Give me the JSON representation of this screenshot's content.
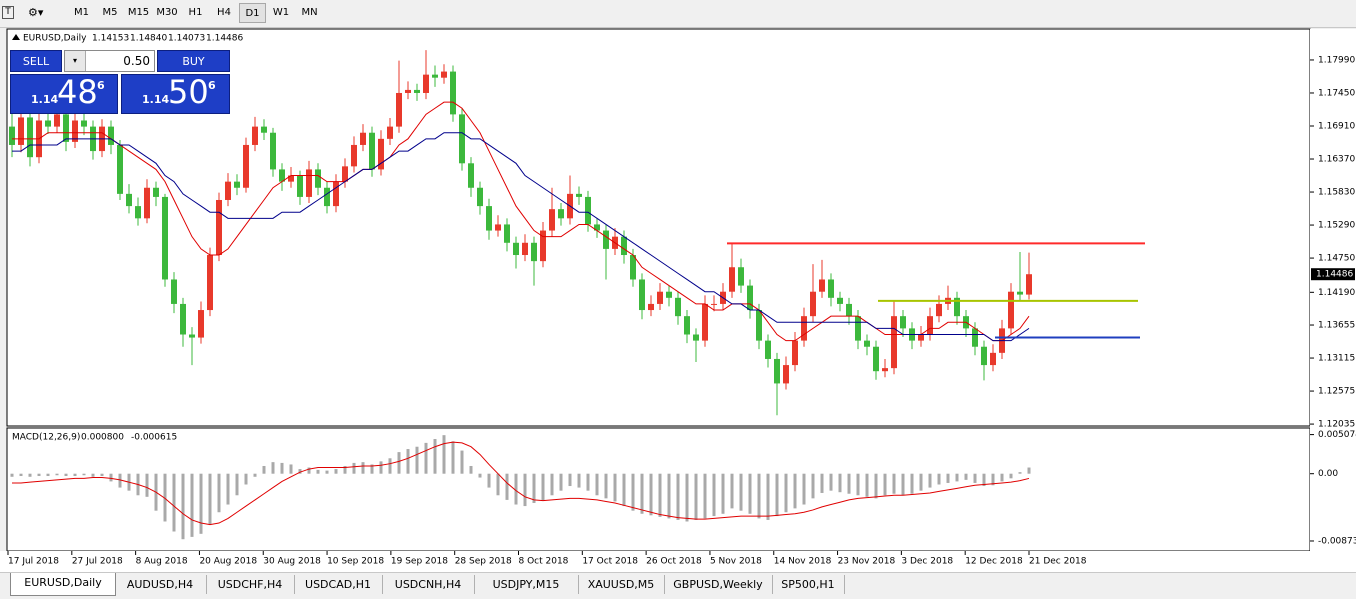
{
  "toolbar": {
    "timeframes": [
      "M1",
      "M5",
      "M15",
      "M30",
      "H1",
      "H4",
      "D1",
      "W1",
      "MN"
    ],
    "active": "D1"
  },
  "trade_panel": {
    "sell": "SELL",
    "buy": "BUY",
    "lot": "0.50",
    "bid": {
      "big": "1.14",
      "main": "48",
      "small": "6"
    },
    "ask": {
      "big": "1.14",
      "main": "50",
      "small": "6"
    }
  },
  "chart_data": {
    "type": "candlestick",
    "symbol": "EURUSD,Daily",
    "ohlc_labels": [
      "1.14153",
      "1.14840",
      "1.14073",
      "1.14486"
    ],
    "colors": {
      "up": "#e8392b",
      "down": "#3cb83c"
    },
    "candles": [
      [
        1.169,
        1.1712,
        1.164,
        1.166
      ],
      [
        1.166,
        1.1718,
        1.1648,
        1.1705
      ],
      [
        1.1705,
        1.1714,
        1.1625,
        1.164
      ],
      [
        1.164,
        1.1712,
        1.163,
        1.17
      ],
      [
        1.17,
        1.1718,
        1.1678,
        1.169
      ],
      [
        1.169,
        1.1722,
        1.168,
        1.171
      ],
      [
        1.171,
        1.172,
        1.165,
        1.1665
      ],
      [
        1.1665,
        1.1712,
        1.1655,
        1.17
      ],
      [
        1.17,
        1.1715,
        1.1676,
        1.169
      ],
      [
        1.169,
        1.17,
        1.1636,
        1.165
      ],
      [
        1.165,
        1.1702,
        1.164,
        1.169
      ],
      [
        1.169,
        1.17,
        1.1645,
        1.166
      ],
      [
        1.166,
        1.1668,
        1.157,
        1.158
      ],
      [
        1.158,
        1.1596,
        1.1548,
        1.156
      ],
      [
        1.156,
        1.1574,
        1.1528,
        1.154
      ],
      [
        1.154,
        1.1604,
        1.1532,
        1.159
      ],
      [
        1.159,
        1.16,
        1.156,
        1.1575
      ],
      [
        1.1575,
        1.158,
        1.1428,
        1.144
      ],
      [
        1.144,
        1.1452,
        1.1385,
        1.14
      ],
      [
        1.14,
        1.141,
        1.133,
        1.135
      ],
      [
        1.135,
        1.1362,
        1.13,
        1.1345
      ],
      [
        1.1345,
        1.1404,
        1.1335,
        1.139
      ],
      [
        1.139,
        1.1492,
        1.138,
        1.148
      ],
      [
        1.148,
        1.1582,
        1.147,
        1.157
      ],
      [
        1.157,
        1.1614,
        1.156,
        1.16
      ],
      [
        1.16,
        1.1612,
        1.1578,
        1.159
      ],
      [
        1.159,
        1.1672,
        1.1582,
        1.166
      ],
      [
        1.166,
        1.1706,
        1.165,
        1.169
      ],
      [
        1.169,
        1.1702,
        1.1668,
        1.168
      ],
      [
        1.168,
        1.1688,
        1.1608,
        1.162
      ],
      [
        1.162,
        1.163,
        1.1585,
        1.16
      ],
      [
        1.16,
        1.1624,
        1.159,
        1.161
      ],
      [
        1.161,
        1.1618,
        1.1562,
        1.1575
      ],
      [
        1.1575,
        1.1634,
        1.1565,
        1.162
      ],
      [
        1.162,
        1.163,
        1.1578,
        1.159
      ],
      [
        1.159,
        1.16,
        1.1548,
        1.156
      ],
      [
        1.156,
        1.1612,
        1.155,
        1.16
      ],
      [
        1.16,
        1.1638,
        1.159,
        1.1625
      ],
      [
        1.1625,
        1.1674,
        1.1615,
        1.166
      ],
      [
        1.166,
        1.1694,
        1.165,
        1.168
      ],
      [
        1.168,
        1.169,
        1.1608,
        1.162
      ],
      [
        1.162,
        1.1684,
        1.161,
        1.167
      ],
      [
        1.167,
        1.1704,
        1.166,
        1.169
      ],
      [
        1.169,
        1.1798,
        1.168,
        1.1745
      ],
      [
        1.1745,
        1.1764,
        1.1735,
        1.175
      ],
      [
        1.175,
        1.176,
        1.1732,
        1.1745
      ],
      [
        1.1745,
        1.1815,
        1.1735,
        1.1775
      ],
      [
        1.1775,
        1.179,
        1.1755,
        1.177
      ],
      [
        1.177,
        1.1792,
        1.176,
        1.178
      ],
      [
        1.178,
        1.179,
        1.1698,
        1.171
      ],
      [
        1.171,
        1.172,
        1.1618,
        1.163
      ],
      [
        1.163,
        1.164,
        1.1575,
        1.159
      ],
      [
        1.159,
        1.16,
        1.1546,
        1.156
      ],
      [
        1.156,
        1.1572,
        1.1505,
        1.152
      ],
      [
        1.152,
        1.1545,
        1.151,
        1.153
      ],
      [
        1.153,
        1.154,
        1.1486,
        1.15
      ],
      [
        1.15,
        1.151,
        1.1458,
        1.148
      ],
      [
        1.148,
        1.1514,
        1.147,
        1.15
      ],
      [
        1.15,
        1.151,
        1.143,
        1.147
      ],
      [
        1.147,
        1.1534,
        1.146,
        1.152
      ],
      [
        1.152,
        1.159,
        1.151,
        1.1555
      ],
      [
        1.1555,
        1.1565,
        1.1528,
        1.154
      ],
      [
        1.154,
        1.161,
        1.153,
        1.158
      ],
      [
        1.158,
        1.1592,
        1.1562,
        1.1575
      ],
      [
        1.1575,
        1.1585,
        1.1518,
        1.153
      ],
      [
        1.153,
        1.154,
        1.1508,
        1.152
      ],
      [
        1.152,
        1.153,
        1.144,
        1.149
      ],
      [
        1.149,
        1.1524,
        1.148,
        1.151
      ],
      [
        1.151,
        1.152,
        1.1466,
        1.148
      ],
      [
        1.148,
        1.149,
        1.1428,
        1.144
      ],
      [
        1.144,
        1.145,
        1.1375,
        1.139
      ],
      [
        1.139,
        1.1414,
        1.138,
        1.14
      ],
      [
        1.14,
        1.1434,
        1.139,
        1.142
      ],
      [
        1.142,
        1.143,
        1.1396,
        1.141
      ],
      [
        1.141,
        1.142,
        1.1366,
        1.138
      ],
      [
        1.138,
        1.139,
        1.1336,
        1.135
      ],
      [
        1.135,
        1.136,
        1.1305,
        1.134
      ],
      [
        1.134,
        1.1414,
        1.133,
        1.14
      ],
      [
        1.14,
        1.1414,
        1.1388,
        1.14
      ],
      [
        1.14,
        1.1434,
        1.139,
        1.142
      ],
      [
        1.142,
        1.15,
        1.141,
        1.146
      ],
      [
        1.146,
        1.1474,
        1.1418,
        1.143
      ],
      [
        1.143,
        1.144,
        1.1376,
        1.139
      ],
      [
        1.139,
        1.14,
        1.1326,
        1.134
      ],
      [
        1.134,
        1.135,
        1.1296,
        1.131
      ],
      [
        1.131,
        1.132,
        1.1218,
        1.127
      ],
      [
        1.127,
        1.1314,
        1.126,
        1.13
      ],
      [
        1.13,
        1.1354,
        1.129,
        1.134
      ],
      [
        1.134,
        1.1394,
        1.133,
        1.138
      ],
      [
        1.138,
        1.1465,
        1.137,
        1.142
      ],
      [
        1.142,
        1.1472,
        1.141,
        1.144
      ],
      [
        1.144,
        1.145,
        1.1396,
        1.141
      ],
      [
        1.141,
        1.142,
        1.1388,
        1.14
      ],
      [
        1.14,
        1.141,
        1.1366,
        1.138
      ],
      [
        1.138,
        1.139,
        1.1326,
        1.134
      ],
      [
        1.134,
        1.135,
        1.1316,
        1.133
      ],
      [
        1.133,
        1.134,
        1.1276,
        1.129
      ],
      [
        1.129,
        1.131,
        1.128,
        1.1295
      ],
      [
        1.1295,
        1.1405,
        1.1285,
        1.138
      ],
      [
        1.138,
        1.139,
        1.1346,
        1.136
      ],
      [
        1.136,
        1.137,
        1.1326,
        1.134
      ],
      [
        1.134,
        1.1364,
        1.133,
        1.135
      ],
      [
        1.135,
        1.1394,
        1.134,
        1.138
      ],
      [
        1.138,
        1.1414,
        1.137,
        1.14
      ],
      [
        1.14,
        1.143,
        1.139,
        1.141
      ],
      [
        1.141,
        1.142,
        1.1366,
        1.138
      ],
      [
        1.138,
        1.139,
        1.1346,
        1.136
      ],
      [
        1.136,
        1.137,
        1.1316,
        1.133
      ],
      [
        1.133,
        1.134,
        1.1275,
        1.13
      ],
      [
        1.13,
        1.1334,
        1.129,
        1.132
      ],
      [
        1.132,
        1.1374,
        1.131,
        1.136
      ],
      [
        1.136,
        1.1434,
        1.135,
        1.142
      ],
      [
        1.142,
        1.1485,
        1.1405,
        1.14153
      ],
      [
        1.14153,
        1.1484,
        1.14073,
        1.14486
      ]
    ],
    "series": [
      {
        "color": "#e00000",
        "values": [
          1.167,
          1.167,
          1.167,
          1.167,
          1.168,
          1.168,
          1.168,
          1.168,
          1.168,
          1.168,
          1.168,
          1.167,
          1.166,
          1.165,
          1.164,
          1.163,
          1.162,
          1.16,
          1.157,
          1.154,
          1.151,
          1.149,
          1.148,
          1.148,
          1.149,
          1.151,
          1.153,
          1.155,
          1.157,
          1.159,
          1.16,
          1.161,
          1.161,
          1.161,
          1.161,
          1.16,
          1.16,
          1.16,
          1.161,
          1.162,
          1.162,
          1.163,
          1.164,
          1.166,
          1.167,
          1.169,
          1.171,
          1.172,
          1.173,
          1.173,
          1.172,
          1.17,
          1.168,
          1.165,
          1.162,
          1.159,
          1.156,
          1.154,
          1.152,
          1.151,
          1.151,
          1.151,
          1.152,
          1.153,
          1.153,
          1.152,
          1.151,
          1.15,
          1.149,
          1.148,
          1.146,
          1.145,
          1.144,
          1.143,
          1.142,
          1.141,
          1.14,
          1.14,
          1.139,
          1.139,
          1.14,
          1.14,
          1.14,
          1.139,
          1.137,
          1.135,
          1.134,
          1.134,
          1.135,
          1.136,
          1.137,
          1.138,
          1.138,
          1.138,
          1.138,
          1.137,
          1.136,
          1.135,
          1.135,
          1.135,
          1.135,
          1.135,
          1.136,
          1.136,
          1.137,
          1.137,
          1.137,
          1.136,
          1.135,
          1.134,
          1.134,
          1.135,
          1.136,
          1.138
        ]
      },
      {
        "color": "#00008b",
        "values": [
          1.165,
          1.165,
          1.166,
          1.166,
          1.166,
          1.166,
          1.167,
          1.167,
          1.167,
          1.167,
          1.167,
          1.167,
          1.166,
          1.166,
          1.165,
          1.164,
          1.163,
          1.161,
          1.16,
          1.158,
          1.157,
          1.156,
          1.155,
          1.155,
          1.154,
          1.154,
          1.154,
          1.154,
          1.154,
          1.154,
          1.155,
          1.155,
          1.155,
          1.156,
          1.157,
          1.158,
          1.159,
          1.16,
          1.161,
          1.162,
          1.162,
          1.163,
          1.164,
          1.165,
          1.165,
          1.166,
          1.167,
          1.167,
          1.168,
          1.168,
          1.168,
          1.167,
          1.167,
          1.166,
          1.165,
          1.164,
          1.163,
          1.161,
          1.16,
          1.159,
          1.158,
          1.157,
          1.156,
          1.155,
          1.155,
          1.154,
          1.153,
          1.152,
          1.151,
          1.15,
          1.149,
          1.148,
          1.147,
          1.146,
          1.145,
          1.144,
          1.143,
          1.142,
          1.142,
          1.141,
          1.14,
          1.14,
          1.139,
          1.139,
          1.138,
          1.137,
          1.137,
          1.137,
          1.137,
          1.137,
          1.137,
          1.137,
          1.137,
          1.137,
          1.137,
          1.137,
          1.136,
          1.136,
          1.136,
          1.135,
          1.135,
          1.135,
          1.135,
          1.135,
          1.135,
          1.135,
          1.135,
          1.135,
          1.135,
          1.134,
          1.134,
          1.134,
          1.135,
          1.136
        ]
      }
    ],
    "levels": [
      {
        "price": 1.1499,
        "color": "#ff2a2a"
      },
      {
        "price": 1.1405,
        "color": "#a8c400"
      },
      {
        "price": 1.1345,
        "color": "#1f3fbf"
      }
    ],
    "ylim": [
      1.1202,
      1.1848
    ],
    "yticks": [
      {
        "value": 1.1799,
        "label": "1.17990"
      },
      {
        "value": 1.1745,
        "label": "1.17450"
      },
      {
        "value": 1.1691,
        "label": "1.16910"
      },
      {
        "value": 1.1637,
        "label": "1.16370"
      },
      {
        "value": 1.1583,
        "label": "1.15830"
      },
      {
        "value": 1.1529,
        "label": "1.15290"
      },
      {
        "value": 1.1475,
        "label": "1.14750"
      },
      {
        "value": 1.1419,
        "label": "1.14190"
      },
      1.13655,
      1.13115,
      1.12575,
      1.12035
    ],
    "x_labels": [
      "17 Jul 2018",
      "27 Jul 2018",
      "8 Aug 2018",
      "20 Aug 2018",
      "30 Aug 2018",
      "10 Sep 2018",
      "19 Sep 2018",
      "28 Sep 2018",
      "8 Oct 2018",
      "17 Oct 2018",
      "26 Oct 2018",
      "5 Nov 2018",
      "14 Nov 2018",
      "23 Nov 2018",
      "3 Dec 2018",
      "12 Dec 2018",
      "21 Dec 2018"
    ],
    "macd": {
      "title": "MACD(12,26,9)",
      "readout": [
        {
          "value": 0.0008,
          "label": "0.000800"
        },
        {
          "value": -0.000615,
          "label": "-0.000615"
        }
      ],
      "ylim": [
        -0.0099,
        0.0058
      ],
      "yticks": [
        0.005074,
        {
          "value": 0,
          "label": "0.00"
        },
        -0.00873
      ],
      "histogram": {
        "color": "#a9a9a9",
        "values": [
          -0.0004,
          -0.0003,
          -0.0004,
          -0.0003,
          -0.0003,
          -0.0002,
          -0.0003,
          -0.0003,
          -0.0002,
          -0.0004,
          -0.0003,
          -0.001,
          -0.0018,
          -0.0022,
          -0.0028,
          -0.003,
          -0.0048,
          -0.0062,
          -0.0075,
          -0.0085,
          -0.0082,
          -0.0078,
          -0.0066,
          -0.005,
          -0.004,
          -0.0028,
          -0.0014,
          -0.0004,
          0.001,
          0.0015,
          0.0014,
          0.0012,
          0.0006,
          0.0008,
          0.0005,
          0.0004,
          0.0006,
          0.001,
          0.0014,
          0.0015,
          0.0012,
          0.0016,
          0.002,
          0.0028,
          0.0032,
          0.0035,
          0.004,
          0.0045,
          0.005,
          0.0042,
          0.003,
          0.001,
          -0.0005,
          -0.0018,
          -0.0028,
          -0.0034,
          -0.004,
          -0.0042,
          -0.0038,
          -0.0035,
          -0.0028,
          -0.0022,
          -0.0016,
          -0.0018,
          -0.0022,
          -0.0028,
          -0.0032,
          -0.0036,
          -0.0042,
          -0.0048,
          -0.0052,
          -0.0054,
          -0.0056,
          -0.0058,
          -0.006,
          -0.0062,
          -0.006,
          -0.0058,
          -0.0055,
          -0.0052,
          -0.0045,
          -0.0048,
          -0.0052,
          -0.0058,
          -0.006,
          -0.0055,
          -0.005,
          -0.0045,
          -0.004,
          -0.0032,
          -0.0025,
          -0.0022,
          -0.0024,
          -0.0026,
          -0.0028,
          -0.003,
          -0.0032,
          -0.0028,
          -0.0026,
          -0.0028,
          -0.0026,
          -0.0022,
          -0.0018,
          -0.0014,
          -0.0012,
          -0.001,
          -0.0008,
          -0.0012,
          -0.0016,
          -0.0015,
          -0.001,
          -0.0006,
          0.0002,
          0.0008
        ]
      },
      "signal": {
        "color": "#e00000",
        "values": [
          -0.0012,
          -0.0012,
          -0.0011,
          -0.001,
          -0.0009,
          -0.0008,
          -0.0007,
          -0.0006,
          -0.0006,
          -0.0005,
          -0.0005,
          -0.0006,
          -0.0008,
          -0.0011,
          -0.0014,
          -0.0018,
          -0.0024,
          -0.0032,
          -0.0042,
          -0.0052,
          -0.006,
          -0.0064,
          -0.0066,
          -0.0064,
          -0.0058,
          -0.005,
          -0.0042,
          -0.0034,
          -0.0026,
          -0.0018,
          -0.001,
          -0.0004,
          0.0002,
          0.0006,
          0.0008,
          0.0008,
          0.0008,
          0.0008,
          0.0009,
          0.001,
          0.001,
          0.0011,
          0.0013,
          0.0016,
          0.002,
          0.0025,
          0.003,
          0.0035,
          0.0039,
          0.0041,
          0.004,
          0.0035,
          0.0025,
          0.0012,
          0.0,
          -0.0012,
          -0.0022,
          -0.003,
          -0.0034,
          -0.0035,
          -0.0034,
          -0.0033,
          -0.0032,
          -0.0032,
          -0.0033,
          -0.0034,
          -0.0036,
          -0.0038,
          -0.0041,
          -0.0044,
          -0.0047,
          -0.005,
          -0.0053,
          -0.0055,
          -0.0057,
          -0.0058,
          -0.0059,
          -0.0059,
          -0.0058,
          -0.0057,
          -0.0056,
          -0.0055,
          -0.0055,
          -0.0055,
          -0.0055,
          -0.0054,
          -0.0053,
          -0.0052,
          -0.005,
          -0.0047,
          -0.0043,
          -0.004,
          -0.0037,
          -0.0034,
          -0.0032,
          -0.0031,
          -0.003,
          -0.0029,
          -0.0028,
          -0.0028,
          -0.0027,
          -0.0026,
          -0.0025,
          -0.0023,
          -0.0021,
          -0.0019,
          -0.0017,
          -0.0015,
          -0.0014,
          -0.0013,
          -0.0012,
          -0.0011,
          -0.0009,
          -0.000615
        ]
      }
    }
  },
  "tabs": [
    "EURUSD,Daily",
    "AUDUSD,H4",
    "USDCHF,H4",
    "USDCAD,H1",
    "USDCNH,H4",
    "USDJPY,M15",
    "XAUUSD,M5",
    "GBPUSD,Weekly",
    "SP500,H1"
  ]
}
